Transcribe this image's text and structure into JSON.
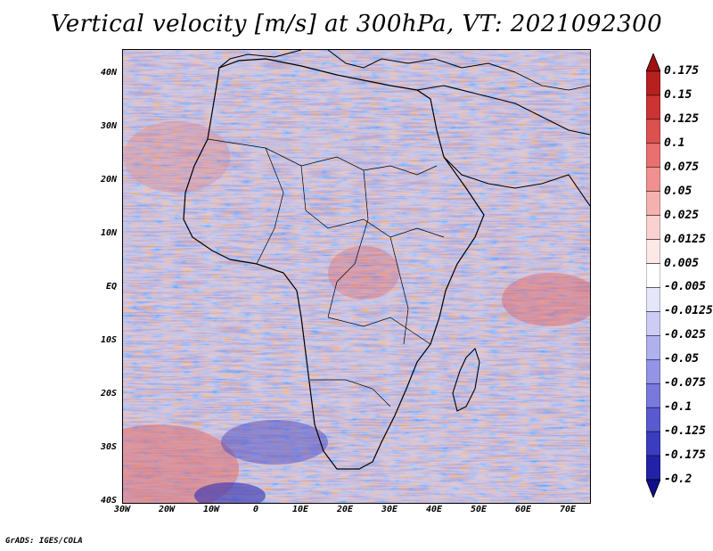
{
  "title": "Vertical velocity [m/s] at 300hPa, VT: 2021092300",
  "footer": "GrADS: IGES/COLA",
  "lat_labels": [
    "40N",
    "30N",
    "20N",
    "10N",
    "EQ",
    "10S",
    "20S",
    "30S",
    "40S"
  ],
  "lon_labels": [
    "30W",
    "20W",
    "10W",
    "0",
    "10E",
    "20E",
    "30E",
    "40E",
    "50E",
    "60E",
    "70E"
  ],
  "colorbar": {
    "labels": [
      "0.175",
      "0.15",
      "0.125",
      "0.1",
      "0.075",
      "0.05",
      "0.025",
      "0.0125",
      "0.005",
      "-0.005",
      "-0.0125",
      "-0.025",
      "-0.05",
      "-0.075",
      "-0.1",
      "-0.125",
      "-0.175",
      "-0.2"
    ],
    "colors": [
      "#a01010",
      "#b82020",
      "#cc3333",
      "#dd5050",
      "#e87070",
      "#f09090",
      "#f5b0b0",
      "#fad0d0",
      "#fde8e8",
      "#ffffff",
      "#e6e6fb",
      "#ccccf5",
      "#b0b0ee",
      "#9494e6",
      "#7878dd",
      "#5a5ad0",
      "#3c3cc0",
      "#2222a8",
      "#10108a"
    ]
  }
}
